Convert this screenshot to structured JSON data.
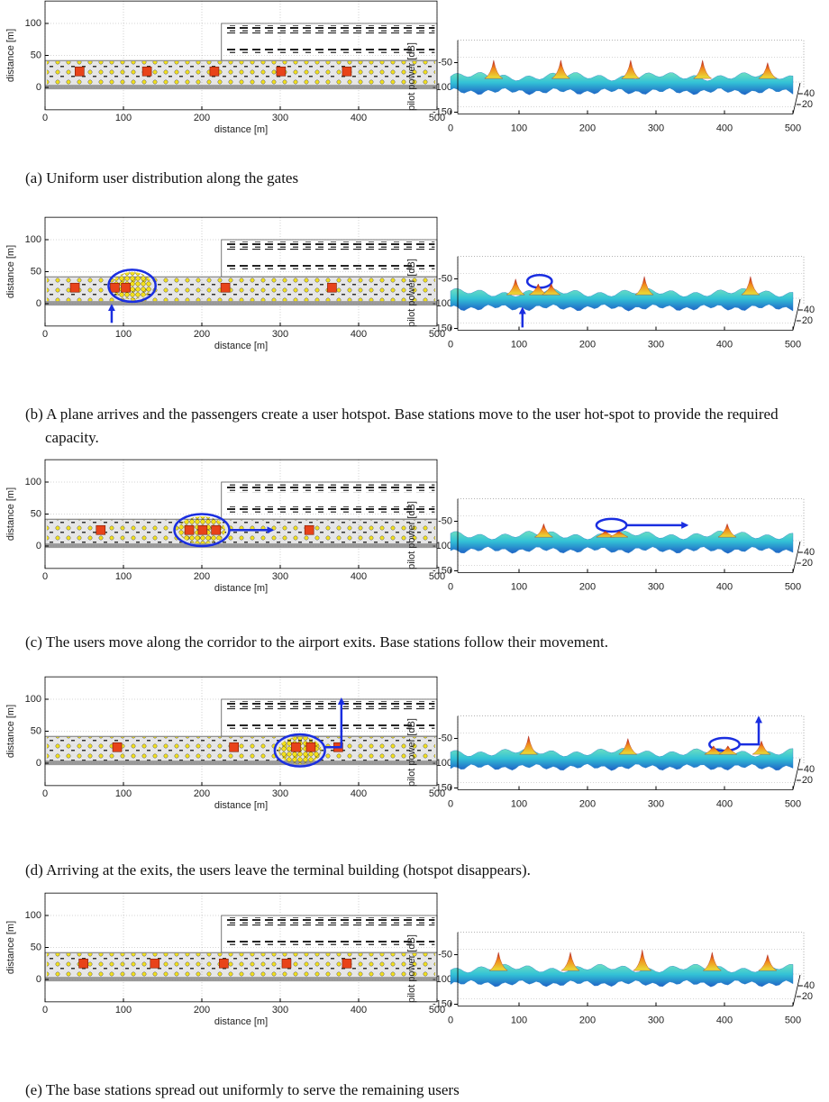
{
  "panels": [
    {
      "caption": "(a) Uniform user distribution along the gates",
      "map": {
        "type": "scatter",
        "xlabel": "distance [m]",
        "ylabel": "distance [m]",
        "xlim": [
          0,
          500
        ],
        "ylim": [
          -35,
          135
        ],
        "xticks": [
          0,
          100,
          200,
          300,
          400,
          500
        ],
        "yticks": [
          0,
          50,
          100
        ],
        "color": "#e8431a",
        "base_stations": {
          "x": [
            44,
            130,
            216,
            301,
            385
          ],
          "y": [
            25,
            25,
            25,
            25,
            25
          ]
        }
      },
      "power": {
        "type": "surface",
        "ylabel": "pilot power [dB]",
        "xlim": [
          0,
          500
        ],
        "zlim": [
          -150,
          -5
        ],
        "xticks": [
          0,
          100,
          200,
          300,
          400,
          500
        ],
        "zticks": [
          -50,
          -100,
          -150
        ],
        "depth_lim": [
          0,
          60
        ],
        "depth_ticks": [
          40,
          20
        ],
        "peaks": {
          "x": [
            63,
            161,
            263,
            368,
            463
          ],
          "values": [
            -45,
            -45,
            -45,
            -45,
            -50
          ]
        }
      }
    },
    {
      "caption": "(b) A plane arrives and the passengers create a user hotspot. Base stations move to the user hot-spot to provide the required capacity.",
      "map": {
        "type": "scatter",
        "xlabel": "distance [m]",
        "ylabel": "distance [m]",
        "xlim": [
          0,
          500
        ],
        "ylim": [
          -35,
          135
        ],
        "xticks": [
          0,
          100,
          200,
          300,
          400,
          500
        ],
        "yticks": [
          0,
          50,
          100
        ],
        "color": "#e8431a",
        "base_stations": {
          "x": [
            38,
            89,
            103,
            230,
            366
          ],
          "y": [
            25,
            25,
            25,
            25,
            25
          ]
        }
      },
      "power": {
        "type": "surface",
        "ylabel": "pilot power [dB]",
        "xlim": [
          0,
          500
        ],
        "zlim": [
          -150,
          -5
        ],
        "xticks": [
          0,
          100,
          200,
          300,
          400,
          500
        ],
        "zticks": [
          -50,
          -100,
          -150
        ],
        "depth_lim": [
          0,
          60
        ],
        "depth_ticks": [
          40,
          20
        ],
        "peaks": {
          "x": [
            95,
            128,
            147,
            283,
            438
          ],
          "values": [
            -50,
            -60,
            -60,
            -45,
            -45
          ]
        }
      }
    },
    {
      "caption": "(c) The users move along the corridor to the airport exits. Base stations follow their movement.",
      "map": {
        "type": "scatter",
        "xlabel": "distance [m]",
        "ylabel": "distance [m]",
        "xlim": [
          0,
          500
        ],
        "ylim": [
          -35,
          135
        ],
        "xticks": [
          0,
          100,
          200,
          300,
          400,
          500
        ],
        "yticks": [
          0,
          50,
          100
        ],
        "color": "#e8431a",
        "base_stations": {
          "x": [
            71,
            184,
            201,
            218,
            337
          ],
          "y": [
            25,
            25,
            25,
            25,
            25
          ]
        }
      },
      "power": {
        "type": "surface",
        "ylabel": "pilot power [dB]",
        "xlim": [
          0,
          500
        ],
        "zlim": [
          -150,
          -5
        ],
        "xticks": [
          0,
          100,
          200,
          300,
          400,
          500
        ],
        "zticks": [
          -50,
          -100,
          -150
        ],
        "depth_lim": [
          0,
          60
        ],
        "depth_ticks": [
          40,
          20
        ],
        "peaks": {
          "x": [
            136,
            226,
            246,
            404
          ],
          "values": [
            -55,
            -70,
            -70,
            -55
          ]
        }
      }
    },
    {
      "caption": "(d) Arriving at the exits, the users leave the terminal building (hotspot disappears).",
      "map": {
        "type": "scatter",
        "xlabel": "distance [m]",
        "ylabel": "distance [m]",
        "xlim": [
          0,
          500
        ],
        "ylim": [
          -35,
          135
        ],
        "xticks": [
          0,
          100,
          200,
          300,
          400,
          500
        ],
        "yticks": [
          0,
          50,
          100
        ],
        "color": "#e8431a",
        "base_stations": {
          "x": [
            92,
            241,
            320,
            339,
            374
          ],
          "y": [
            25,
            25,
            25,
            25,
            25
          ]
        }
      },
      "power": {
        "type": "surface",
        "ylabel": "pilot power [dB]",
        "xlim": [
          0,
          500
        ],
        "zlim": [
          -150,
          -5
        ],
        "xticks": [
          0,
          100,
          200,
          300,
          400,
          500
        ],
        "zticks": [
          -50,
          -100,
          -150
        ],
        "depth_lim": [
          0,
          60
        ],
        "depth_ticks": [
          40,
          20
        ],
        "peaks": {
          "x": [
            114,
            259,
            384,
            405,
            454
          ],
          "values": [
            -45,
            -50,
            -65,
            -65,
            -55
          ]
        }
      }
    },
    {
      "caption": "(e) The base stations spread out uniformly to serve the remaining users",
      "map": {
        "type": "scatter",
        "xlabel": "distance [m]",
        "ylabel": "distance [m]",
        "xlim": [
          0,
          500
        ],
        "ylim": [
          -35,
          135
        ],
        "xticks": [
          0,
          100,
          200,
          300,
          400,
          500
        ],
        "yticks": [
          0,
          50,
          100
        ],
        "color": "#e8431a",
        "base_stations": {
          "x": [
            49,
            140,
            228,
            308,
            385
          ],
          "y": [
            25,
            25,
            25,
            25,
            25
          ]
        }
      },
      "power": {
        "type": "surface",
        "ylabel": "pilot power [dB]",
        "xlim": [
          0,
          500
        ],
        "zlim": [
          -150,
          -5
        ],
        "xticks": [
          0,
          100,
          200,
          300,
          400,
          500
        ],
        "zticks": [
          -50,
          -100,
          -150
        ],
        "depth_lim": [
          0,
          60
        ],
        "depth_ticks": [
          40,
          20
        ],
        "peaks": {
          "x": [
            70,
            175,
            280,
            382,
            463
          ],
          "values": [
            -45,
            -45,
            -40,
            -45,
            -50
          ]
        }
      }
    }
  ]
}
